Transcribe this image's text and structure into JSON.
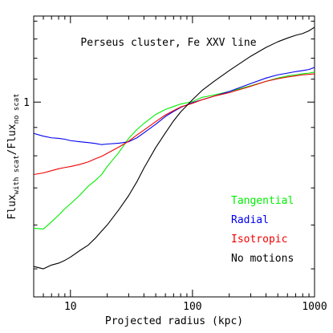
{
  "chart_data": {
    "type": "line",
    "title": "Perseus cluster, Fe XXV line",
    "xlabel": "Projected radius (kpc)",
    "ylabel": {
      "main": "Flux",
      "sub1": "with scat",
      "mid": "/Flux",
      "sub2": "no scat"
    },
    "x_scale": "log",
    "y_scale": "log",
    "xlim": [
      5,
      1000
    ],
    "ylim": [
      0.445,
      1.43
    ],
    "x_ticks": [
      {
        "value": 10,
        "label": "10"
      },
      {
        "value": 100,
        "label": "100"
      },
      {
        "value": 1000,
        "label": "1000"
      }
    ],
    "y_ticks": [
      {
        "value": 1,
        "label": "1"
      }
    ],
    "x": [
      5,
      6,
      7,
      8,
      9,
      10,
      12,
      14,
      16,
      18,
      20,
      25,
      30,
      35,
      40,
      50,
      60,
      70,
      80,
      100,
      120,
      150,
      200,
      300,
      400,
      500,
      600,
      700,
      800,
      900,
      1000
    ],
    "series": [
      {
        "name": "Tangential",
        "color": "#00ee00",
        "values": [
          0.592,
          0.59,
          0.608,
          0.625,
          0.642,
          0.655,
          0.68,
          0.705,
          0.722,
          0.74,
          0.765,
          0.812,
          0.86,
          0.892,
          0.915,
          0.95,
          0.97,
          0.982,
          0.992,
          1.002,
          1.02,
          1.03,
          1.045,
          1.07,
          1.09,
          1.105,
          1.115,
          1.12,
          1.125,
          1.128,
          1.133
        ]
      },
      {
        "name": "Radial",
        "color": "#0000ee",
        "values": [
          0.878,
          0.868,
          0.862,
          0.86,
          0.857,
          0.852,
          0.848,
          0.845,
          0.842,
          0.838,
          0.84,
          0.843,
          0.848,
          0.862,
          0.88,
          0.912,
          0.942,
          0.962,
          0.978,
          0.998,
          1.01,
          1.025,
          1.045,
          1.08,
          1.105,
          1.12,
          1.128,
          1.135,
          1.14,
          1.145,
          1.155
        ]
      },
      {
        "name": "Isotropic",
        "color": "#ee0000",
        "values": [
          0.74,
          0.745,
          0.752,
          0.758,
          0.762,
          0.765,
          0.772,
          0.78,
          0.79,
          0.798,
          0.808,
          0.83,
          0.85,
          0.872,
          0.89,
          0.922,
          0.948,
          0.965,
          0.98,
          0.995,
          1.01,
          1.025,
          1.04,
          1.068,
          1.09,
          1.102,
          1.11,
          1.115,
          1.12,
          1.122,
          1.125
        ]
      },
      {
        "name": "No motions",
        "color": "#000000",
        "values": [
          0.505,
          0.5,
          0.508,
          0.512,
          0.518,
          0.525,
          0.54,
          0.552,
          0.568,
          0.585,
          0.6,
          0.64,
          0.678,
          0.718,
          0.76,
          0.828,
          0.88,
          0.925,
          0.96,
          1.01,
          1.05,
          1.09,
          1.14,
          1.21,
          1.255,
          1.285,
          1.305,
          1.32,
          1.33,
          1.345,
          1.365
        ]
      }
    ],
    "legend": {
      "placement": "lower-right",
      "entries": [
        "Tangential",
        "Radial",
        "Isotropic",
        "No motions"
      ]
    },
    "grid": false
  }
}
